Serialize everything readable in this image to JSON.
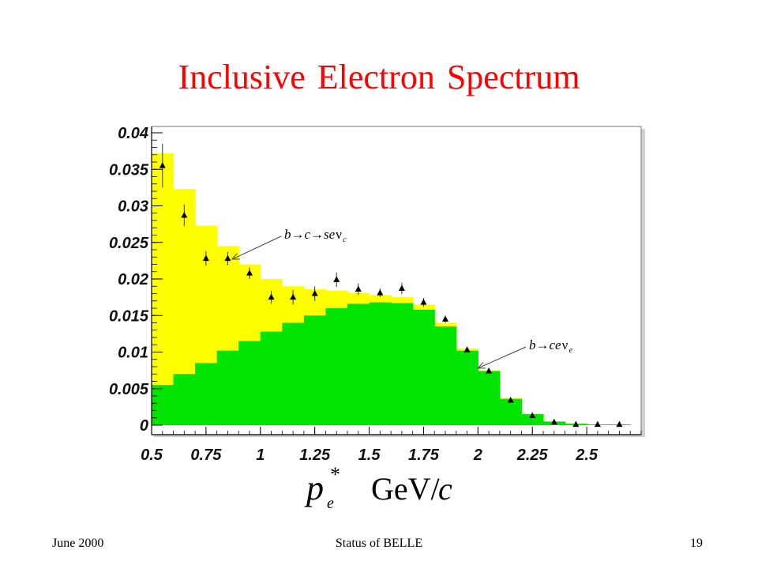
{
  "slide": {
    "title": "Inclusive Electron Spectrum",
    "footer_left": "June 2000",
    "footer_center": "Status of BELLE",
    "footer_right": "19"
  },
  "colors": {
    "title": "#ff0000",
    "total_fill": "#ffff00",
    "direct_fill": "#00e400",
    "plot_bg": "#ffffff",
    "marker": "#000000"
  },
  "chart_data": {
    "type": "bar",
    "title": "",
    "xlabel": {
      "symbol": "p",
      "subscript": "e",
      "superscript": "*",
      "unit": "GeV/",
      "unit_italic": "c"
    },
    "ylabel": "",
    "xlim": [
      0.5,
      2.75
    ],
    "ylim": [
      0,
      0.04
    ],
    "grid": false,
    "x_ticks": [
      {
        "value": 0.5,
        "label": "0.5"
      },
      {
        "value": 0.75,
        "label": "0.75"
      },
      {
        "value": 1.0,
        "label": "1"
      },
      {
        "value": 1.25,
        "label": "1.25"
      },
      {
        "value": 1.5,
        "label": "1.5"
      },
      {
        "value": 1.75,
        "label": "1.75"
      },
      {
        "value": 2.0,
        "label": "2"
      },
      {
        "value": 2.25,
        "label": "2.25"
      },
      {
        "value": 2.5,
        "label": "2.5"
      }
    ],
    "y_ticks": [
      {
        "value": 0.0,
        "label": "0"
      },
      {
        "value": 0.005,
        "label": "0.005"
      },
      {
        "value": 0.01,
        "label": "0.01"
      },
      {
        "value": 0.015,
        "label": "0.015"
      },
      {
        "value": 0.02,
        "label": "0.02"
      },
      {
        "value": 0.025,
        "label": "0.025"
      },
      {
        "value": 0.03,
        "label": "0.03"
      },
      {
        "value": 0.035,
        "label": "0.035"
      },
      {
        "value": 0.04,
        "label": "0.04"
      }
    ],
    "bin_edges": [
      0.5,
      0.6,
      0.7,
      0.8,
      0.9,
      1.0,
      1.1,
      1.2,
      1.3,
      1.4,
      1.5,
      1.6,
      1.7,
      1.8,
      1.9,
      2.0,
      2.1,
      2.2,
      2.3,
      2.4,
      2.5,
      2.6,
      2.7
    ],
    "series": [
      {
        "kind": "histogram",
        "fill": "total",
        "values": [
          0.0372,
          0.0323,
          0.0273,
          0.0245,
          0.022,
          0.02,
          0.019,
          0.0186,
          0.0184,
          0.0181,
          0.0178,
          0.0175,
          0.0165,
          0.014,
          0.0105,
          0.0075,
          0.0037,
          0.0015,
          0.0005,
          0.0002,
          0.0001,
          0.0001
        ]
      },
      {
        "kind": "histogram",
        "fill": "direct",
        "values": [
          0.0055,
          0.007,
          0.0085,
          0.0102,
          0.0115,
          0.0128,
          0.014,
          0.015,
          0.016,
          0.0166,
          0.0168,
          0.0167,
          0.0158,
          0.0135,
          0.0102,
          0.0074,
          0.0036,
          0.0015,
          0.0005,
          0.0002,
          0.0001,
          0.0001
        ]
      },
      {
        "kind": "points",
        "x": [
          0.55,
          0.65,
          0.75,
          0.85,
          0.95,
          1.05,
          1.15,
          1.25,
          1.35,
          1.45,
          1.55,
          1.65,
          1.75,
          1.85,
          1.95,
          2.05,
          2.15,
          2.25,
          2.35,
          2.45,
          2.55,
          2.65
        ],
        "y": [
          0.0355,
          0.0287,
          0.0228,
          0.0228,
          0.0208,
          0.0175,
          0.0175,
          0.018,
          0.0199,
          0.0186,
          0.0181,
          0.0187,
          0.0168,
          0.0145,
          0.0103,
          0.0074,
          0.0034,
          0.0013,
          0.0004,
          0.0001,
          0.0001,
          0.0001
        ],
        "err": [
          0.003,
          0.0015,
          0.001,
          0.0009,
          0.0008,
          0.0009,
          0.001,
          0.001,
          0.001,
          0.0008,
          0.0006,
          0.0008,
          0.0006,
          0.0005,
          0.0004,
          0.0003,
          0.0002,
          0.0002,
          0.0001,
          0.0001,
          0.0001,
          0.0001
        ]
      }
    ],
    "annotations": [
      {
        "text_main": "b→c→se",
        "nu": "ν",
        "subscript": "c",
        "target": {
          "x": 0.87,
          "y": 0.0227
        }
      },
      {
        "text_main": "b→ce",
        "nu": "ν",
        "subscript": "e",
        "target": {
          "x": 2.0,
          "y": 0.0078
        }
      }
    ]
  }
}
